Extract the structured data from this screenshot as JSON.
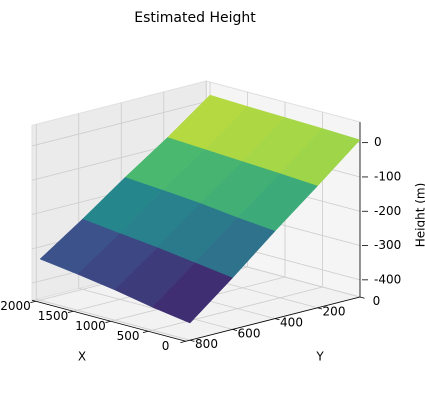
{
  "chart_data": {
    "type": "surface",
    "title": "Estimated Height",
    "xlabel": "X",
    "ylabel": "Y",
    "zlabel": "Height (m)",
    "x": [
      0,
      500,
      1000,
      1500,
      2000
    ],
    "y": [
      0,
      200,
      400,
      600,
      800
    ],
    "z": [
      [
        8,
        12,
        15,
        18,
        22
      ],
      [
        -95,
        -88,
        -82,
        -76,
        -70
      ],
      [
        -195,
        -185,
        -172,
        -163,
        -155
      ],
      [
        -300,
        -285,
        -270,
        -258,
        -245
      ],
      [
        -400,
        -383,
        -362,
        -345,
        -330
      ]
    ],
    "xlim": [
      0,
      2050
    ],
    "ylim": [
      0,
      820
    ],
    "zlim": [
      -450,
      60
    ],
    "xticks": [
      0,
      500,
      1000,
      1500,
      2000
    ],
    "yticks": [
      0,
      200,
      400,
      600,
      800
    ],
    "zticks": [
      -400,
      -300,
      -200,
      -100,
      0
    ],
    "colormap": "viridis",
    "grid": true
  }
}
